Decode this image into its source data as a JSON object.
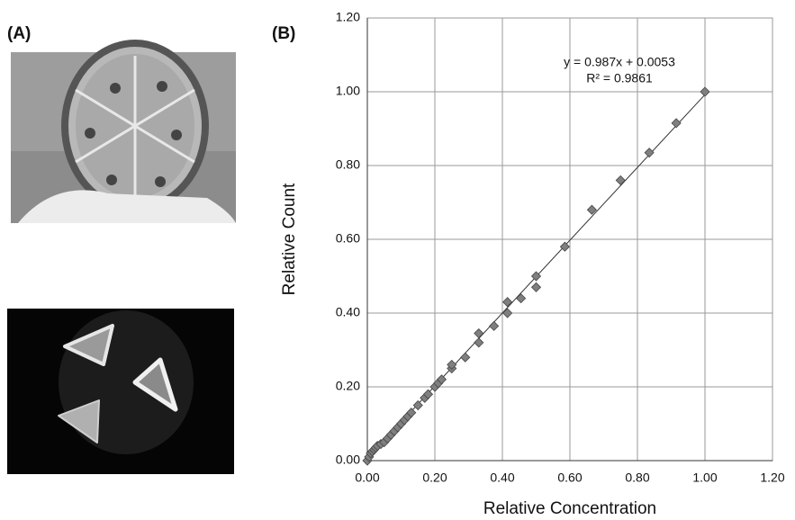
{
  "panels": [
    "(A)",
    "(B)"
  ],
  "chart_data": {
    "type": "scatter",
    "x_label": "Relative Concentration",
    "y_label": "Relative Count",
    "x": [
      0,
      0.005,
      0.01,
      0.015,
      0.02,
      0.025,
      0.03,
      0.04,
      0.05,
      0.06,
      0.07,
      0.08,
      0.09,
      0.1,
      0.11,
      0.12,
      0.13,
      0.15,
      0.17,
      0.18,
      0.2,
      0.21,
      0.22,
      0.25,
      0.25,
      0.29,
      0.33,
      0.33,
      0.375,
      0.415,
      0.415,
      0.455,
      0.5,
      0.5,
      0.585,
      0.665,
      0.75,
      0.835,
      0.915,
      1.0
    ],
    "values": [
      0,
      0.01,
      0.02,
      0.025,
      0.03,
      0.035,
      0.04,
      0.045,
      0.05,
      0.06,
      0.07,
      0.08,
      0.09,
      0.1,
      0.11,
      0.12,
      0.13,
      0.15,
      0.17,
      0.18,
      0.2,
      0.21,
      0.22,
      0.25,
      0.26,
      0.28,
      0.32,
      0.345,
      0.365,
      0.4,
      0.43,
      0.44,
      0.47,
      0.5,
      0.58,
      0.68,
      0.76,
      0.835,
      0.915,
      1.0
    ],
    "color": "#7f7f7f",
    "xlim": [
      0,
      1.2
    ],
    "ylim": [
      0,
      1.2
    ],
    "xticks": [
      {
        "value": 0,
        "label": "0.00"
      },
      {
        "value": 0.2,
        "label": "0.20"
      },
      {
        "value": 0.4,
        "label": "0.40"
      },
      {
        "value": 0.6,
        "label": "0.60"
      },
      {
        "value": 0.8,
        "label": "0.80"
      },
      {
        "value": 1,
        "label": "1.00"
      },
      {
        "value": 1.2,
        "label": "1.20"
      }
    ],
    "yticks": [
      {
        "value": 0,
        "label": "0.00"
      },
      {
        "value": 0.2,
        "label": "0.20"
      },
      {
        "value": 0.4,
        "label": "0.40"
      },
      {
        "value": 0.6,
        "label": "0.60"
      },
      {
        "value": 0.8,
        "label": "0.80"
      },
      {
        "value": 1,
        "label": "1.00"
      },
      {
        "value": 1.2,
        "label": "1.20"
      }
    ],
    "grid": true,
    "trendline": {
      "slope": 0.987,
      "intercept": 0.0053,
      "equation": "y = 0.987x + 0.0053",
      "r2_label": "R² = 0.9861"
    }
  }
}
